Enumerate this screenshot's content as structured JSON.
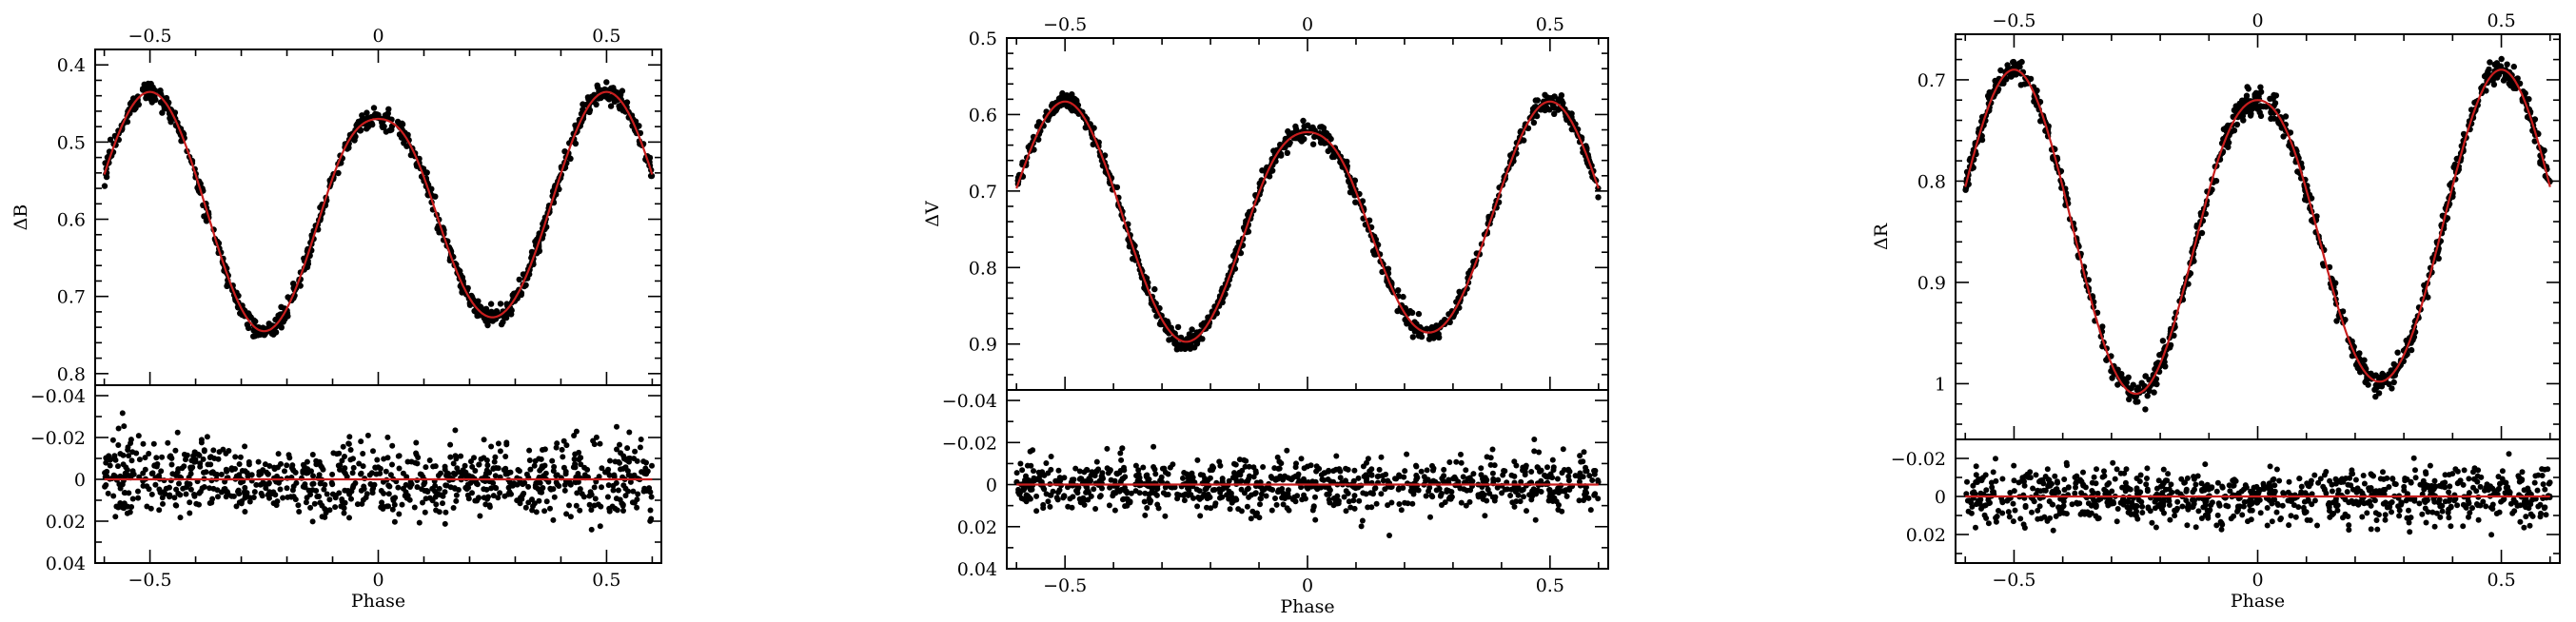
{
  "chart_data": [
    {
      "type": "scatter",
      "panel": "B",
      "ylabel": "ΔB",
      "xlabel": "Phase",
      "xlim": [
        -0.62,
        0.62
      ],
      "x_ticks": [
        -0.5,
        0,
        0.5
      ],
      "x_tick_labels": [
        "−0.5",
        "0",
        "0.5"
      ],
      "top_x_tick_labels": [
        "−0.5",
        "0",
        "0.5"
      ],
      "light_curve": {
        "ylim_inverted": [
          0.38,
          0.815
        ],
        "y_ticks": [
          0.4,
          0.5,
          0.6,
          0.7,
          0.8
        ],
        "y_tick_labels": [
          "0.4",
          "0.5",
          "0.6",
          "0.7",
          "0.8"
        ],
        "model": {
          "mean": 0.59,
          "amp": 0.155,
          "min1_extra": 0.035,
          "min2_extra": 0.0,
          "max1_bright": 0.0,
          "max2_bright": 0.018
        },
        "x_range": [
          -0.6,
          0.6
        ],
        "scatter": 0.006,
        "n_points": 900
      },
      "residuals": {
        "ylim_inverted": [
          -0.045,
          0.04
        ],
        "y_ticks": [
          -0.04,
          -0.02,
          0,
          0.02,
          0.04
        ],
        "y_tick_labels": [
          "−0.04",
          "−0.02",
          "0",
          "0.02",
          "0.04"
        ],
        "scatter": 0.007,
        "band_offsets": [
          0.009,
          -0.006
        ],
        "n_points": 900
      },
      "grid": false,
      "colors": {
        "points": "#000000",
        "fit": "#c81e1e"
      }
    },
    {
      "type": "scatter",
      "panel": "V",
      "ylabel": "ΔV",
      "xlabel": "Phase",
      "xlim": [
        -0.62,
        0.62
      ],
      "x_ticks": [
        -0.5,
        0,
        0.5
      ],
      "x_tick_labels": [
        "−0.5",
        "0",
        "0.5"
      ],
      "top_x_tick_labels": [
        "−0.5",
        "0",
        "0.5"
      ],
      "light_curve": {
        "ylim_inverted": [
          0.5,
          0.96
        ],
        "y_ticks": [
          0.5,
          0.6,
          0.7,
          0.8,
          0.9
        ],
        "y_tick_labels": [
          "0.5",
          "0.6",
          "0.7",
          "0.8",
          "0.9"
        ],
        "model": {
          "mean": 0.745,
          "amp": 0.152,
          "min1_extra": 0.03,
          "min2_extra": -0.01,
          "max1_bright": 0.0,
          "max2_bright": 0.012
        },
        "x_range": [
          -0.6,
          0.6
        ],
        "scatter": 0.006,
        "n_points": 900
      },
      "residuals": {
        "ylim_inverted": [
          -0.045,
          0.04
        ],
        "y_ticks": [
          -0.04,
          -0.02,
          0,
          0.02,
          0.04
        ],
        "y_tick_labels": [
          "−0.04",
          "−0.02",
          "0",
          "0.02",
          "0.04"
        ],
        "scatter": 0.006,
        "band_offsets": [
          0.003,
          -0.002
        ],
        "n_points": 900
      },
      "grid": false,
      "colors": {
        "points": "#000000",
        "fit": "#c81e1e"
      }
    },
    {
      "type": "scatter",
      "panel": "R",
      "ylabel": "ΔR",
      "xlabel": "Phase",
      "xlim": [
        -0.62,
        0.62
      ],
      "x_ticks": [
        -0.5,
        0,
        0.5
      ],
      "x_tick_labels": [
        "−0.5",
        "0",
        "0.5"
      ],
      "top_x_tick_labels": [
        "−0.5",
        "0",
        "0.5"
      ],
      "light_curve": {
        "ylim_inverted": [
          0.655,
          1.055
        ],
        "y_ticks": [
          0.7,
          0.8,
          0.9,
          1.0
        ],
        "y_tick_labels": [
          "0.7",
          "0.8",
          "0.9",
          "1"
        ],
        "model": {
          "mean": 0.855,
          "amp": 0.155,
          "min1_extra": 0.02,
          "min2_extra": -0.01,
          "max1_bright": 0.0,
          "max2_bright": 0.012
        },
        "x_range": [
          -0.6,
          0.6
        ],
        "scatter": 0.006,
        "n_points": 900
      },
      "residuals": {
        "ylim_inverted": [
          -0.03,
          0.035
        ],
        "y_ticks": [
          -0.02,
          0,
          0.02
        ],
        "y_tick_labels": [
          "−0.02",
          "0",
          "0.02"
        ],
        "scatter": 0.007,
        "band_offsets": [
          0.002,
          -0.001
        ],
        "n_points": 900
      },
      "grid": false,
      "colors": {
        "points": "#000000",
        "fit": "#c81e1e"
      }
    }
  ]
}
